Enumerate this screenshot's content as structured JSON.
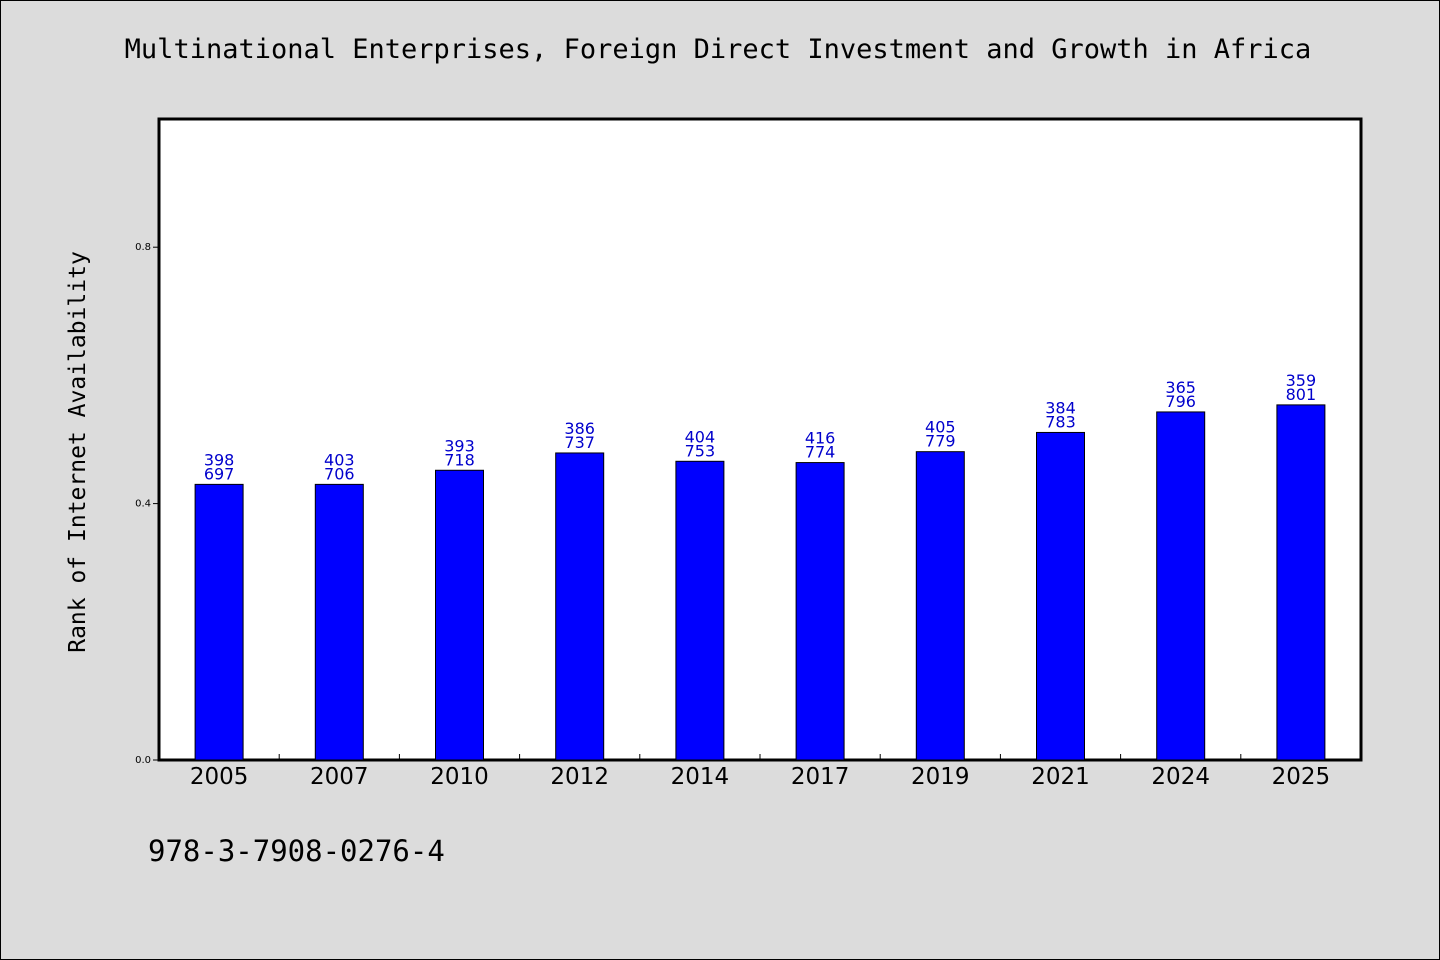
{
  "title": "Multinational Enterprises, Foreign Direct Investment and Growth in Africa",
  "isbn": "978-3-7908-0276-4",
  "colors": {
    "bar": "#0000ff",
    "bar_label": "#0000cc",
    "plot_bg": "#ffffff",
    "page_bg": "#dcdcdc"
  },
  "chart_data": {
    "type": "bar",
    "title": "",
    "xlabel": "",
    "ylabel": "Rank of Internet Availability",
    "categories": [
      "2005",
      "2007",
      "2010",
      "2012",
      "2014",
      "2017",
      "2019",
      "2021",
      "2024",
      "2025"
    ],
    "values": [
      0.43,
      0.43,
      0.452,
      0.479,
      0.466,
      0.464,
      0.481,
      0.511,
      0.543,
      0.554
    ],
    "label_top": [
      "398",
      "403",
      "393",
      "386",
      "404",
      "416",
      "405",
      "384",
      "365",
      "359"
    ],
    "label_bottom": [
      "697",
      "706",
      "718",
      "737",
      "753",
      "774",
      "779",
      "783",
      "796",
      "801"
    ],
    "yticks": [
      "0.0",
      "0.4",
      "0.8"
    ],
    "ylim": [
      0,
      1.0
    ],
    "grid": false,
    "legend": "none"
  }
}
